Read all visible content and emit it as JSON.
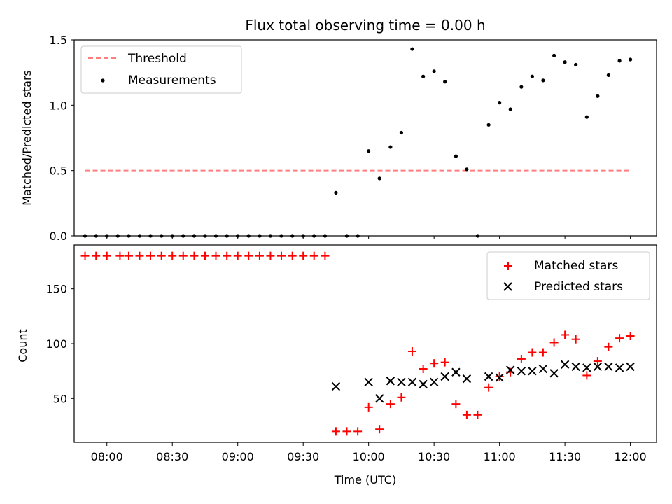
{
  "chart_data": [
    {
      "type": "scatter",
      "title": "Flux total observing time = 0.00 h",
      "xlabel": "",
      "ylabel": "Matched/Predicted stars",
      "xlim": [
        7.75,
        12.2
      ],
      "ylim": [
        0,
        1.5
      ],
      "yticks": [
        "0.0",
        "0.5",
        "1.0",
        "1.5"
      ],
      "threshold": {
        "name": "Threshold",
        "value": 0.5,
        "x_start": 7.833,
        "x_end": 12.0,
        "color": "#ff7f7f"
      },
      "series": [
        {
          "name": "Measurements",
          "marker": "dot",
          "color": "#000000",
          "points": [
            [
              7.833,
              0
            ],
            [
              7.917,
              0
            ],
            [
              8.0,
              0
            ],
            [
              8.083,
              0
            ],
            [
              8.167,
              0
            ],
            [
              8.25,
              0
            ],
            [
              8.333,
              0
            ],
            [
              8.417,
              0
            ],
            [
              8.5,
              0
            ],
            [
              8.583,
              0
            ],
            [
              8.667,
              0
            ],
            [
              8.75,
              0
            ],
            [
              8.833,
              0
            ],
            [
              8.917,
              0
            ],
            [
              9.0,
              0
            ],
            [
              9.083,
              0
            ],
            [
              9.167,
              0
            ],
            [
              9.25,
              0
            ],
            [
              9.333,
              0
            ],
            [
              9.417,
              0
            ],
            [
              9.5,
              0
            ],
            [
              9.583,
              0
            ],
            [
              9.667,
              0
            ],
            [
              9.75,
              0.33
            ],
            [
              9.833,
              0
            ],
            [
              9.917,
              0
            ],
            [
              10.0,
              0.65
            ],
            [
              10.083,
              0.44
            ],
            [
              10.167,
              0.68
            ],
            [
              10.25,
              0.79
            ],
            [
              10.333,
              1.43
            ],
            [
              10.417,
              1.22
            ],
            [
              10.5,
              1.26
            ],
            [
              10.583,
              1.18
            ],
            [
              10.667,
              0.61
            ],
            [
              10.75,
              0.51
            ],
            [
              10.833,
              0
            ],
            [
              10.917,
              0.85
            ],
            [
              11.0,
              1.02
            ],
            [
              11.083,
              0.97
            ],
            [
              11.167,
              1.14
            ],
            [
              11.25,
              1.22
            ],
            [
              11.333,
              1.19
            ],
            [
              11.417,
              1.38
            ],
            [
              11.5,
              1.33
            ],
            [
              11.583,
              1.31
            ],
            [
              11.667,
              0.91
            ],
            [
              11.75,
              1.07
            ],
            [
              11.833,
              1.23
            ],
            [
              11.917,
              1.34
            ],
            [
              12.0,
              1.35
            ]
          ]
        }
      ],
      "legend": "top-left"
    },
    {
      "type": "scatter",
      "title": "",
      "xlabel": "Time (UTC)",
      "ylabel": "Count",
      "xlim": [
        7.75,
        12.2
      ],
      "ylim": [
        10,
        190
      ],
      "yticks": [
        "50",
        "100",
        "150"
      ],
      "xticks": [
        "08:00",
        "08:30",
        "09:00",
        "09:30",
        "10:00",
        "10:30",
        "11:00",
        "11:30",
        "12:00"
      ],
      "series": [
        {
          "name": "Matched stars",
          "marker": "plus",
          "color": "#ff0000",
          "points": [
            [
              7.833,
              180
            ],
            [
              7.917,
              180
            ],
            [
              8.0,
              180
            ],
            [
              8.1,
              180
            ],
            [
              8.167,
              180
            ],
            [
              8.25,
              180
            ],
            [
              8.333,
              180
            ],
            [
              8.417,
              180
            ],
            [
              8.5,
              180
            ],
            [
              8.583,
              180
            ],
            [
              8.667,
              180
            ],
            [
              8.75,
              180
            ],
            [
              8.833,
              180
            ],
            [
              8.917,
              180
            ],
            [
              9.0,
              180
            ],
            [
              9.083,
              180
            ],
            [
              9.167,
              180
            ],
            [
              9.25,
              180
            ],
            [
              9.333,
              180
            ],
            [
              9.417,
              180
            ],
            [
              9.5,
              180
            ],
            [
              9.583,
              180
            ],
            [
              9.667,
              180
            ],
            [
              9.75,
              20
            ],
            [
              9.833,
              20
            ],
            [
              9.917,
              20
            ],
            [
              10.0,
              42
            ],
            [
              10.083,
              22
            ],
            [
              10.167,
              45
            ],
            [
              10.25,
              51
            ],
            [
              10.333,
              93
            ],
            [
              10.417,
              77
            ],
            [
              10.5,
              82
            ],
            [
              10.583,
              83
            ],
            [
              10.667,
              45
            ],
            [
              10.75,
              35
            ],
            [
              10.833,
              35
            ],
            [
              10.917,
              60
            ],
            [
              11.0,
              70
            ],
            [
              11.083,
              74
            ],
            [
              11.167,
              86
            ],
            [
              11.25,
              92
            ],
            [
              11.333,
              92
            ],
            [
              11.417,
              101
            ],
            [
              11.5,
              108
            ],
            [
              11.583,
              104
            ],
            [
              11.667,
              71
            ],
            [
              11.75,
              84
            ],
            [
              11.833,
              97
            ],
            [
              11.917,
              105
            ],
            [
              12.0,
              107
            ]
          ]
        },
        {
          "name": "Predicted stars",
          "marker": "x",
          "color": "#000000",
          "points": [
            [
              9.75,
              61
            ],
            [
              10.0,
              65
            ],
            [
              10.083,
              50
            ],
            [
              10.167,
              66
            ],
            [
              10.25,
              65
            ],
            [
              10.333,
              65
            ],
            [
              10.417,
              63
            ],
            [
              10.5,
              65
            ],
            [
              10.583,
              70
            ],
            [
              10.667,
              74
            ],
            [
              10.75,
              68
            ],
            [
              10.917,
              70
            ],
            [
              11.0,
              69
            ],
            [
              11.083,
              76
            ],
            [
              11.167,
              75
            ],
            [
              11.25,
              75
            ],
            [
              11.333,
              77
            ],
            [
              11.417,
              73
            ],
            [
              11.5,
              81
            ],
            [
              11.583,
              79
            ],
            [
              11.667,
              78
            ],
            [
              11.75,
              79
            ],
            [
              11.833,
              79
            ],
            [
              11.917,
              78
            ],
            [
              12.0,
              79
            ]
          ]
        }
      ],
      "legend": "top-right"
    }
  ]
}
